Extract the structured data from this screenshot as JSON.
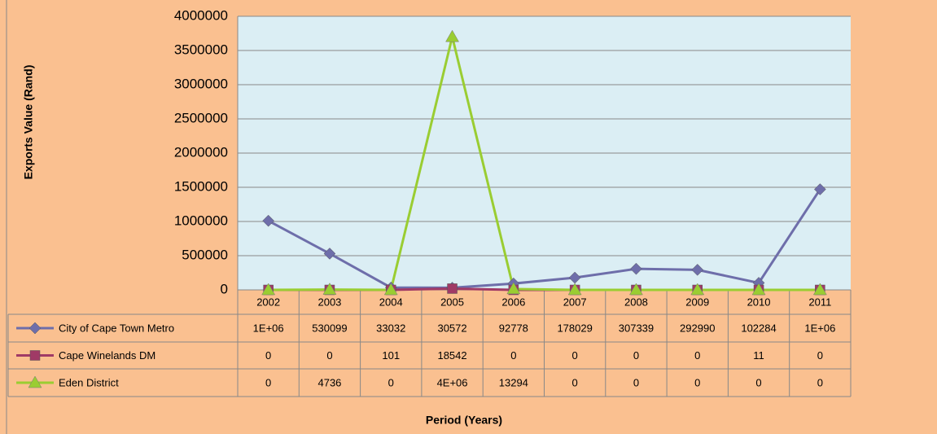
{
  "chart_data": {
    "type": "line",
    "y_label": "Exports Value (Rand)",
    "x_label": "Period (Years)",
    "categories": [
      "2002",
      "2003",
      "2004",
      "2005",
      "2006",
      "2007",
      "2008",
      "2009",
      "2010",
      "2011"
    ],
    "series": [
      {
        "name": "City of Cape Town Metro",
        "color": "#6e6eaa",
        "marker": "diamond",
        "values": [
          1010000,
          530099,
          33032,
          30572,
          92778,
          178029,
          307339,
          292990,
          102284,
          1470000
        ],
        "value_labels": [
          "1E+06",
          null,
          null,
          null,
          null,
          null,
          null,
          null,
          null,
          "1E+06"
        ]
      },
      {
        "name": "Cape Winelands DM",
        "color": "#a03a66",
        "marker": "square",
        "values": [
          0,
          0,
          101,
          18542,
          0,
          0,
          0,
          0,
          11,
          0
        ]
      },
      {
        "name": "Eden District",
        "color": "#9acd32",
        "marker": "triangle",
        "values": [
          0,
          4736,
          0,
          3700000,
          13294,
          0,
          0,
          0,
          0,
          0
        ],
        "value_labels": [
          null,
          null,
          null,
          "4E+06",
          null,
          null,
          null,
          null,
          null,
          null
        ]
      }
    ],
    "ylim": [
      0,
      4000000
    ],
    "yticks": [
      0,
      500000,
      1000000,
      1500000,
      2000000,
      2500000,
      3000000,
      3500000,
      4000000
    ],
    "grid": true,
    "data_table": true
  }
}
